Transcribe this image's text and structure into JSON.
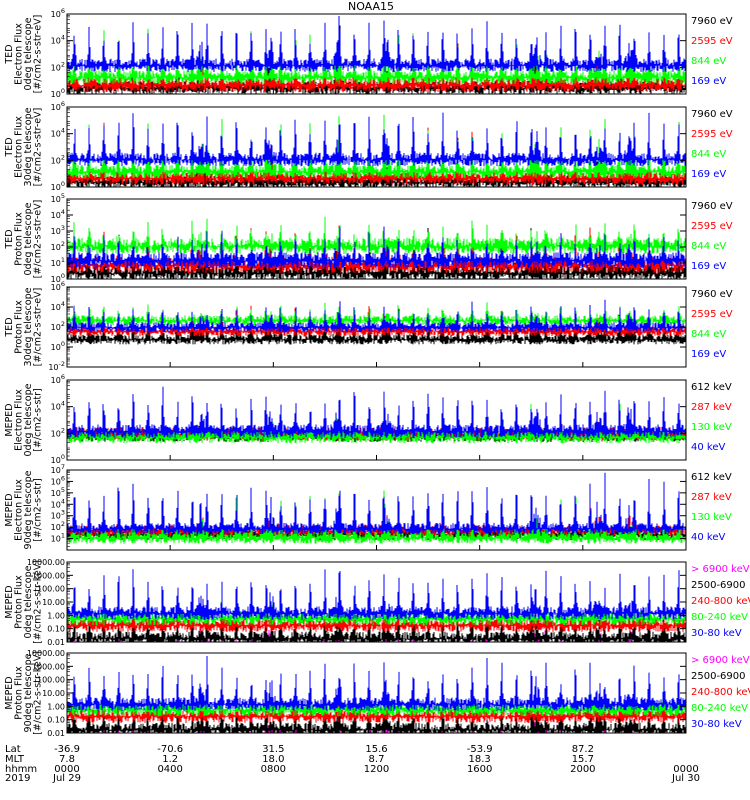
{
  "chart_data": {
    "type": "line",
    "title": "NOAA15",
    "colors": {
      "black": "#000000",
      "blue": "#0000ff",
      "green": "#00ff00",
      "red": "#ff0000",
      "magenta": "#ff00ff"
    },
    "panels": [
      {
        "ylabel_lines": [
          "TED",
          "Electron Flux",
          "0deg telescope",
          "[#/cm2-s-str-eV]"
        ],
        "scale": "log",
        "ylim_exp": [
          0,
          6
        ],
        "ticks": [
          {
            "label_base": "10",
            "label_exp": "0",
            "value_exp": 0
          },
          {
            "label_base": "10",
            "label_exp": "2",
            "value_exp": 2
          },
          {
            "label_base": "10",
            "label_exp": "4",
            "value_exp": 4
          },
          {
            "label_base": "10",
            "label_exp": "6",
            "value_exp": 6
          }
        ],
        "series": [
          {
            "name": "7960 eV",
            "color": "#000000",
            "baseline": 0.7,
            "spike": 4.2
          },
          {
            "name": "2595 eV",
            "color": "#ff0000",
            "baseline": 0.9,
            "spike": 4.4
          },
          {
            "name": "844 eV",
            "color": "#00ff00",
            "baseline": 1.5,
            "spike": 4.9
          },
          {
            "name": "169 eV",
            "color": "#0000ff",
            "baseline": 2.4,
            "spike": 5.4
          }
        ]
      },
      {
        "ylabel_lines": [
          "TED",
          "Electron Flux",
          "30deg telescope",
          "[#/cm2-s-str-eV]"
        ],
        "scale": "log",
        "ylim_exp": [
          0,
          6
        ],
        "ticks": [
          {
            "label_base": "10",
            "label_exp": "0",
            "value_exp": 0
          },
          {
            "label_base": "10",
            "label_exp": "2",
            "value_exp": 2
          },
          {
            "label_base": "10",
            "label_exp": "4",
            "value_exp": 4
          },
          {
            "label_base": "10",
            "label_exp": "6",
            "value_exp": 6
          }
        ],
        "series": [
          {
            "name": "7960 eV",
            "color": "#000000",
            "baseline": 0.6,
            "spike": 4.0
          },
          {
            "name": "2595 eV",
            "color": "#ff0000",
            "baseline": 0.9,
            "spike": 4.3
          },
          {
            "name": "844 eV",
            "color": "#00ff00",
            "baseline": 1.4,
            "spike": 4.9
          },
          {
            "name": "169 eV",
            "color": "#0000ff",
            "baseline": 2.3,
            "spike": 5.3
          }
        ]
      },
      {
        "ylabel_lines": [
          "TED",
          "Proton Flux",
          "0deg telescope",
          "[#/cm2-s-str-eV]"
        ],
        "scale": "log",
        "ylim_exp": [
          0,
          5
        ],
        "ticks": [
          {
            "label_base": "10",
            "label_exp": "0",
            "value_exp": 0
          },
          {
            "label_base": "10",
            "label_exp": "1",
            "value_exp": 1
          },
          {
            "label_base": "10",
            "label_exp": "2",
            "value_exp": 2
          },
          {
            "label_base": "10",
            "label_exp": "3",
            "value_exp": 3
          },
          {
            "label_base": "10",
            "label_exp": "4",
            "value_exp": 4
          },
          {
            "label_base": "10",
            "label_exp": "5",
            "value_exp": 5
          }
        ],
        "series": [
          {
            "name": "7960 eV",
            "color": "#000000",
            "baseline": 0.6,
            "spike": 2.8
          },
          {
            "name": "2595 eV",
            "color": "#ff0000",
            "baseline": 1.1,
            "spike": 3.0
          },
          {
            "name": "844 eV",
            "color": "#00ff00",
            "baseline": 2.3,
            "spike": 3.3
          },
          {
            "name": "169 eV",
            "color": "#0000ff",
            "baseline": 1.4,
            "spike": 2.6
          }
        ]
      },
      {
        "ylabel_lines": [
          "TED",
          "Proton Flux",
          "30deg telescope",
          "[#/cm2-s-str-eV]"
        ],
        "scale": "log",
        "ylim_exp": [
          -2,
          6
        ],
        "ticks": [
          {
            "label_base": "10",
            "label_exp": "-2",
            "value_exp": -2
          },
          {
            "label_base": "10",
            "label_exp": "0",
            "value_exp": 0
          },
          {
            "label_base": "10",
            "label_exp": "2",
            "value_exp": 2
          },
          {
            "label_base": "10",
            "label_exp": "4",
            "value_exp": 4
          },
          {
            "label_base": "10",
            "label_exp": "6",
            "value_exp": 6
          }
        ],
        "series": [
          {
            "name": "7960 eV",
            "color": "#000000",
            "baseline": 1.0,
            "spike": 3.6
          },
          {
            "name": "2595 eV",
            "color": "#ff0000",
            "baseline": 1.8,
            "spike": 3.8
          },
          {
            "name": "844 eV",
            "color": "#00ff00",
            "baseline": 2.9,
            "spike": 4.0
          },
          {
            "name": "169 eV",
            "color": "#0000ff",
            "baseline": 2.2,
            "spike": 4.2
          }
        ]
      },
      {
        "ylabel_lines": [
          "MEPED",
          "Electron Flux",
          "0deg telescope",
          "[#/cm2-s-str]"
        ],
        "scale": "log",
        "ylim_exp": [
          0,
          6
        ],
        "ticks": [
          {
            "label_base": "10",
            "label_exp": "0",
            "value_exp": 0
          },
          {
            "label_base": "10",
            "label_exp": "2",
            "value_exp": 2
          },
          {
            "label_base": "10",
            "label_exp": "4",
            "value_exp": 4
          },
          {
            "label_base": "10",
            "label_exp": "6",
            "value_exp": 6
          }
        ],
        "series": [
          {
            "name": "612 keV",
            "color": "#000000",
            "baseline": 2.1,
            "spike": 3.3
          },
          {
            "name": "287 keV",
            "color": "#ff0000",
            "baseline": 2.2,
            "spike": 3.5
          },
          {
            "name": "130 keV",
            "color": "#00ff00",
            "baseline": 2.0,
            "spike": 3.9
          },
          {
            "name": "40 keV",
            "color": "#0000ff",
            "baseline": 2.4,
            "spike": 5.3
          }
        ]
      },
      {
        "ylabel_lines": [
          "MEPED",
          "Electron Flux",
          "90deg telescope",
          "[#/cm2-s-str]"
        ],
        "scale": "log",
        "ylim_exp": [
          0,
          7
        ],
        "ticks": [
          {
            "label_base": "10",
            "label_exp": "1",
            "value_exp": 1
          },
          {
            "label_base": "10",
            "label_exp": "2",
            "value_exp": 2
          },
          {
            "label_base": "10",
            "label_exp": "3",
            "value_exp": 3
          },
          {
            "label_base": "10",
            "label_exp": "4",
            "value_exp": 4
          },
          {
            "label_base": "10",
            "label_exp": "5",
            "value_exp": 5
          },
          {
            "label_base": "10",
            "label_exp": "6",
            "value_exp": 6
          },
          {
            "label_base": "10",
            "label_exp": "7",
            "value_exp": 7
          }
        ],
        "series": [
          {
            "name": "612 keV",
            "color": "#000000",
            "baseline": 1.6,
            "spike": 3.9
          },
          {
            "name": "287 keV",
            "color": "#ff0000",
            "baseline": 1.9,
            "spike": 4.2
          },
          {
            "name": "130 keV",
            "color": "#00ff00",
            "baseline": 1.3,
            "spike": 5.0
          },
          {
            "name": "40 keV",
            "color": "#0000ff",
            "baseline": 2.1,
            "spike": 6.2
          }
        ]
      },
      {
        "ylabel_lines": [
          "MEPED",
          "Proton Flux",
          "0deg telescope",
          "[#/cm2-s-str-keV]"
        ],
        "scale": "log",
        "ylim_exp": [
          -2,
          4
        ],
        "ticks": [
          {
            "label": "0.01",
            "value_exp": -2
          },
          {
            "label": "0.10",
            "value_exp": -1
          },
          {
            "label": "1.00",
            "value_exp": 0
          },
          {
            "label": "10.00",
            "value_exp": 1
          },
          {
            "label": "100.00",
            "value_exp": 2
          },
          {
            "label": "1000.00",
            "value_exp": 3
          },
          {
            "label": "10000.00",
            "value_exp": 4
          }
        ],
        "series": [
          {
            "name": "> 6900 keV",
            "color": "#ff00ff",
            "baseline": -1.6,
            "spike": -0.9
          },
          {
            "name": "2500-6900",
            "color": "#000000",
            "baseline": -1.5,
            "spike": 0.3
          },
          {
            "name": "240-800 keV",
            "color": "#ff0000",
            "baseline": -0.5,
            "spike": 0.6
          },
          {
            "name": "80-240 keV",
            "color": "#00ff00",
            "baseline": 0.0,
            "spike": 1.3
          },
          {
            "name": "30-80 keV",
            "color": "#0000ff",
            "baseline": 0.4,
            "spike": 3.3
          }
        ]
      },
      {
        "ylabel_lines": [
          "MEPED",
          "Proton Flux",
          "90deg telescope",
          "[#/cm2-s-str-keV]"
        ],
        "scale": "log",
        "ylim_exp": [
          -2,
          4
        ],
        "ticks": [
          {
            "label": "0.01",
            "value_exp": -2
          },
          {
            "label": "0.10",
            "value_exp": -1
          },
          {
            "label": "1.00",
            "value_exp": 0
          },
          {
            "label": "10.00",
            "value_exp": 1
          },
          {
            "label": "100.00",
            "value_exp": 2
          },
          {
            "label": "1000.00",
            "value_exp": 3
          },
          {
            "label": "10000.00",
            "value_exp": 4
          }
        ],
        "series": [
          {
            "name": "> 6900 keV",
            "color": "#ff00ff",
            "baseline": -1.6,
            "spike": -0.9
          },
          {
            "name": "2500-6900",
            "color": "#000000",
            "baseline": -1.5,
            "spike": 0.3
          },
          {
            "name": "240-800 keV",
            "color": "#ff0000",
            "baseline": -0.5,
            "spike": 0.6
          },
          {
            "name": "80-240 keV",
            "color": "#00ff00",
            "baseline": 0.0,
            "spike": 1.3
          },
          {
            "name": "30-80 keV",
            "color": "#0000ff",
            "baseline": 0.4,
            "spike": 3.3
          }
        ]
      }
    ],
    "x_axis": {
      "row_labels": [
        "Lat",
        "MLT",
        "hhmm",
        "2019"
      ],
      "ticks": [
        {
          "hours": 0,
          "values": [
            "-36.9",
            "7.8",
            "0000",
            "Jul 29"
          ]
        },
        {
          "hours": 4,
          "values": [
            "-70.6",
            "1.2",
            "0400",
            ""
          ]
        },
        {
          "hours": 8,
          "values": [
            "31.5",
            "18.0",
            "0800",
            ""
          ]
        },
        {
          "hours": 12,
          "values": [
            "15.6",
            "8.7",
            "1200",
            ""
          ]
        },
        {
          "hours": 16,
          "values": [
            "-53.9",
            "18.3",
            "1600",
            ""
          ]
        },
        {
          "hours": 20,
          "values": [
            "87.2",
            "15.7",
            "2000",
            ""
          ]
        },
        {
          "hours": 24,
          "values": [
            "",
            "",
            "0000",
            "Jul 30"
          ]
        }
      ],
      "xlim_hours": [
        0,
        24
      ],
      "pass_count": 42,
      "big_events_hours": [
        5.2,
        7.9,
        10.5,
        12.4,
        18.2,
        20.6,
        21.8
      ]
    }
  }
}
